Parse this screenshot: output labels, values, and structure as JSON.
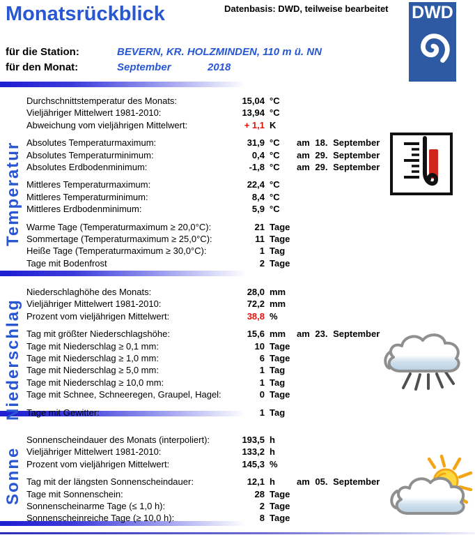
{
  "header": {
    "title": "Monatsrückblick",
    "databasis": "Datenbasis: DWD, teilweise bearbeitet",
    "logo_text": "DWD",
    "station_label": "für die Station:",
    "station_value": "BEVERN, KR. HOLZMINDEN, 110 m ü. NN",
    "month_label": "für den Monat:",
    "month_value": "September",
    "year_value": "2018"
  },
  "colors": {
    "accent_blue": "#2857d4",
    "value_red": "#e3120b",
    "logo_blue": "#2e5aa4",
    "separator_blue": "#1d1dd2"
  },
  "icons": {
    "logo": "dwd-spiral-logo",
    "temperature": "thermometer-icon",
    "precipitation": "rain-cloud-icon",
    "sun": "sun-cloud-icon"
  },
  "sections": [
    {
      "name": "Temperatur",
      "groups": [
        [
          {
            "label": "Durchschnittstemperatur des Monats:",
            "value": "15,04",
            "unit": "°C"
          },
          {
            "label": "Vieljähriger Mittelwert 1981-2010:",
            "value": "13,94",
            "unit": "°C"
          },
          {
            "label": "Abweichung vom vieljährigen Mittelwert:",
            "value": "+ 1,1",
            "unit": "K",
            "red": true
          }
        ],
        [
          {
            "label": "Absolutes Temperaturmaximum:",
            "value": "31,9",
            "unit": "°C",
            "date": "am 18. September"
          },
          {
            "label": "Absolutes Temperaturminimum:",
            "value": "0,4",
            "unit": "°C",
            "date": "am 29. September"
          },
          {
            "label": "Absolutes Erdbodenminimum:",
            "value": "-1,8",
            "unit": "°C",
            "date": "am 29. September"
          }
        ],
        [
          {
            "label": "Mittleres Temperaturmaximum:",
            "value": "22,4",
            "unit": "°C"
          },
          {
            "label": "Mittleres Temperaturminimum:",
            "value": "8,4",
            "unit": "°C"
          },
          {
            "label": "Mittleres Erdbodenminimum:",
            "value": "5,9",
            "unit": "°C"
          }
        ],
        [
          {
            "label": "Warme Tage (Temperaturmaximum ≥ 20,0°C):",
            "value": "21",
            "unit": "Tage"
          },
          {
            "label": "Sommertage (Temperaturmaximum ≥ 25,0°C):",
            "value": "11",
            "unit": "Tage"
          },
          {
            "label": "Heiße Tage (Temperaturmaximum ≥ 30,0°C):",
            "value": "1",
            "unit": "Tag"
          },
          {
            "label": "Tage mit Bodenfrost",
            "value": "2",
            "unit": "Tage"
          }
        ]
      ]
    },
    {
      "name": "Niederschlag",
      "groups": [
        [
          {
            "label": "Niederschlaghöhe des Monats:",
            "value": "28,0",
            "unit": "mm"
          },
          {
            "label": "Vieljähriger Mittelwert 1981-2010:",
            "value": "72,2",
            "unit": "mm"
          },
          {
            "label": "Prozent vom vieljährigen Mittelwert:",
            "value": "38,8",
            "unit": "%",
            "red": true
          }
        ],
        [
          {
            "label": "Tag mit größter Niederschlagshöhe:",
            "value": "15,6",
            "unit": "mm",
            "date": "am 23. September"
          },
          {
            "label": "Tage mit Niederschlag ≥ 0,1 mm:",
            "value": "10",
            "unit": "Tage"
          },
          {
            "label": "Tage mit Niederschlag ≥ 1,0 mm:",
            "value": "6",
            "unit": "Tage"
          },
          {
            "label": "Tage mit Niederschlag ≥ 5,0 mm:",
            "value": "1",
            "unit": "Tag"
          },
          {
            "label": "Tage mit Niederschlag ≥ 10,0 mm:",
            "value": "1",
            "unit": "Tag"
          },
          {
            "label": "Tage mit Schnee, Schneeregen, Graupel, Hagel:",
            "value": "0",
            "unit": "Tage"
          }
        ],
        [
          {
            "label": "Tage mit Gewitter:",
            "value": "1",
            "unit": "Tag"
          }
        ]
      ]
    },
    {
      "name": "Sonne",
      "groups": [
        [
          {
            "label": "Sonnenscheindauer des Monats (interpoliert):",
            "value": "193,5",
            "unit": "h"
          },
          {
            "label": "Vieljähriger Mittelwert 1981-2010:",
            "value": "133,2",
            "unit": "h"
          },
          {
            "label": "Prozent vom vieljährigen Mittelwert:",
            "value": "145,3",
            "unit": "%"
          }
        ],
        [
          {
            "label": "Tag mit der längsten Sonnenscheindauer:",
            "value": "12,1",
            "unit": "h",
            "date": "am 05. September"
          },
          {
            "label": "Tage mit Sonnenschein:",
            "value": "28",
            "unit": "Tage"
          },
          {
            "label": "Sonnenscheinarme Tage (≤ 1,0 h):",
            "value": "2",
            "unit": "Tage"
          },
          {
            "label": "Sonnenscheinreiche Tage (≥ 10,0 h):",
            "value": "8",
            "unit": "Tage"
          }
        ]
      ]
    }
  ]
}
